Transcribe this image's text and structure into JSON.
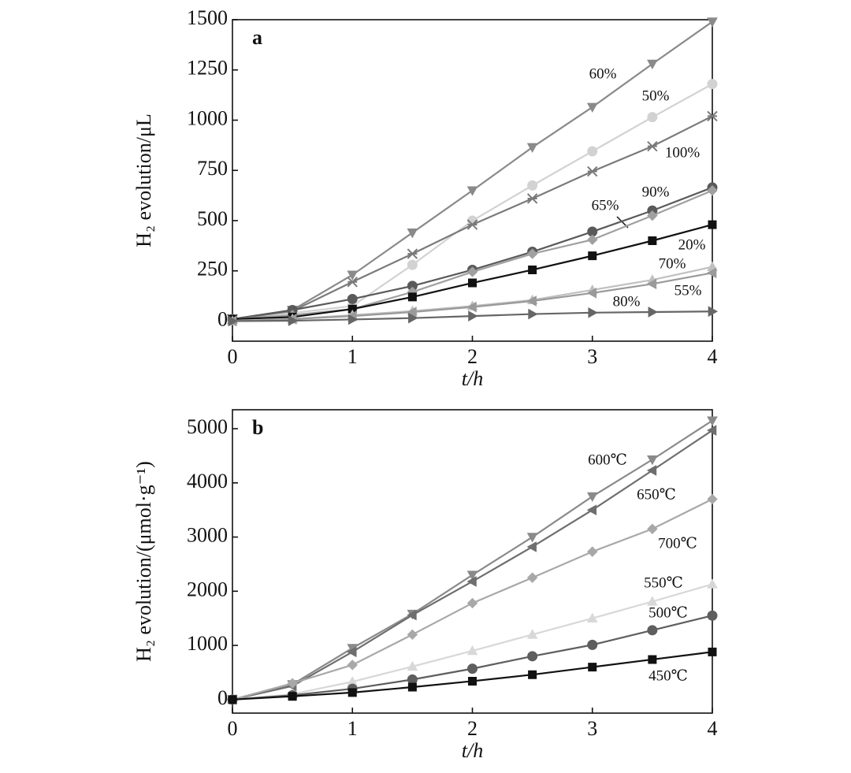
{
  "chart_data": [
    {
      "type": "line",
      "panel_label": "a",
      "ylabel": "H₂ evolution/μL",
      "xlabel": "t/h",
      "xlim": [
        0,
        4
      ],
      "xticks": [
        0,
        1,
        2,
        3,
        4
      ],
      "ylim": [
        -100,
        1500
      ],
      "yticks": [
        0,
        250,
        500,
        750,
        1000,
        1250,
        1500
      ],
      "x": [
        0,
        0.5,
        1,
        1.5,
        2,
        2.5,
        3,
        3.5,
        4
      ],
      "series": [
        {
          "name": "60%",
          "color": "#8a8a8a",
          "marker": "triangle-down",
          "values": [
            10,
            55,
            230,
            440,
            650,
            865,
            1065,
            1280,
            1490
          ]
        },
        {
          "name": "50%",
          "color": "#d2d2d2",
          "marker": "circle",
          "values": [
            10,
            40,
            75,
            280,
            500,
            675,
            845,
            1015,
            1180
          ]
        },
        {
          "name": "100%",
          "color": "#7a7a7a",
          "marker": "star",
          "values": [
            10,
            50,
            195,
            335,
            480,
            610,
            745,
            870,
            1020
          ]
        },
        {
          "name": "90%",
          "color": "#5a5a5a",
          "marker": "circle",
          "values": [
            10,
            55,
            110,
            175,
            255,
            345,
            445,
            550,
            665
          ]
        },
        {
          "name": "65%",
          "color": "#a0a0a0",
          "marker": "diamond",
          "values": [
            10,
            30,
            60,
            145,
            245,
            335,
            405,
            525,
            650
          ]
        },
        {
          "name": "20%",
          "color": "#111111",
          "marker": "square",
          "values": [
            10,
            20,
            60,
            120,
            190,
            255,
            325,
            400,
            480
          ]
        },
        {
          "name": "70%",
          "color": "#c0c0c0",
          "marker": "triangle-up",
          "values": [
            0,
            10,
            30,
            50,
            75,
            105,
            155,
            205,
            270
          ]
        },
        {
          "name": "55%",
          "color": "#9a9a9a",
          "marker": "triangle-left",
          "values": [
            0,
            10,
            25,
            45,
            70,
            100,
            140,
            185,
            240
          ]
        },
        {
          "name": "80%",
          "color": "#666666",
          "marker": "triangle-right",
          "values": [
            0,
            2,
            8,
            15,
            25,
            35,
            42,
            45,
            48
          ]
        }
      ]
    },
    {
      "type": "line",
      "panel_label": "b",
      "ylabel": "H₂ evolution/(μmol·g⁻¹)",
      "xlabel": "t/h",
      "xlim": [
        0,
        4
      ],
      "xticks": [
        0,
        1,
        2,
        3,
        4
      ],
      "ylim": [
        -250,
        5350
      ],
      "yticks": [
        0,
        1000,
        2000,
        3000,
        4000,
        5000
      ],
      "x": [
        0,
        0.5,
        1,
        1.5,
        2,
        2.5,
        3,
        3.5,
        4
      ],
      "series": [
        {
          "name": "600℃",
          "color": "#8a8a8a",
          "marker": "triangle-down",
          "values": [
            0,
            280,
            950,
            1580,
            2300,
            3000,
            3750,
            4430,
            5150
          ]
        },
        {
          "name": "650℃",
          "color": "#6e6e6e",
          "marker": "triangle-left",
          "values": [
            0,
            250,
            880,
            1560,
            2180,
            2820,
            3500,
            4230,
            4970
          ]
        },
        {
          "name": "700℃",
          "color": "#a8a8a8",
          "marker": "diamond",
          "values": [
            0,
            300,
            640,
            1200,
            1780,
            2250,
            2730,
            3150,
            3700
          ]
        },
        {
          "name": "550℃",
          "color": "#d8d8d8",
          "marker": "triangle-up",
          "values": [
            0,
            100,
            330,
            610,
            900,
            1200,
            1500,
            1810,
            2130
          ]
        },
        {
          "name": "500℃",
          "color": "#5e5e5e",
          "marker": "circle",
          "values": [
            0,
            80,
            200,
            370,
            570,
            800,
            1010,
            1280,
            1550
          ]
        },
        {
          "name": "450℃",
          "color": "#111111",
          "marker": "square",
          "values": [
            0,
            60,
            130,
            230,
            340,
            460,
            600,
            740,
            880
          ]
        }
      ]
    }
  ]
}
